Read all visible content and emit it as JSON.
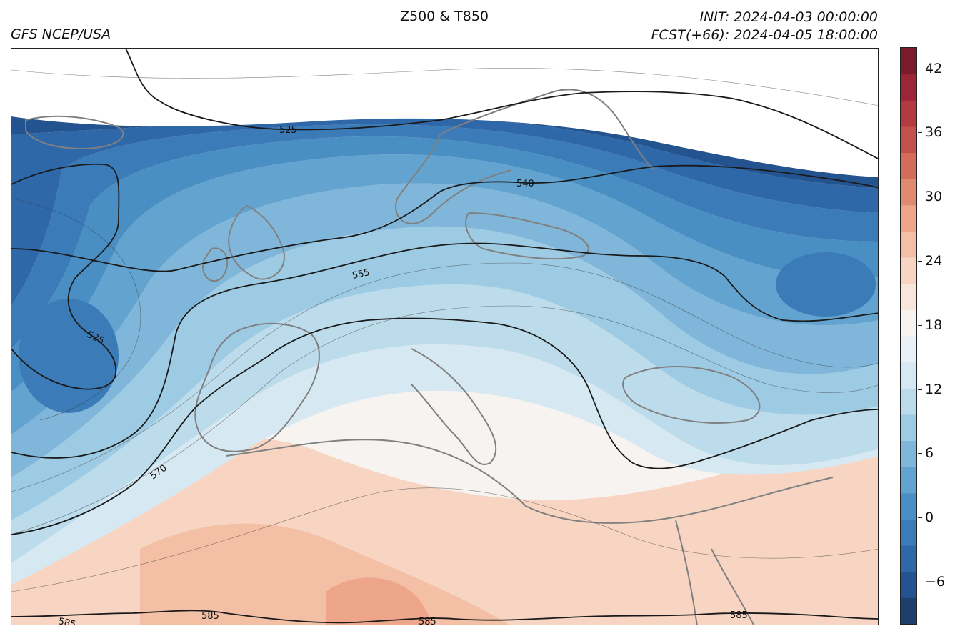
{
  "header": {
    "title": "Z500 & T850",
    "model": "GFS NCEP/USA",
    "init": "INIT: 2024-04-03 00:00:00",
    "forecast": "FCST(+66): 2024-04-05 18:00:00"
  },
  "map": {
    "region": "Europe / North Atlantic / Mediterranean / North Africa",
    "coastline_color": "#808080",
    "contour_color": "#1a1a1a",
    "contour_labels": [
      "525",
      "525",
      "540",
      "555",
      "570",
      "585",
      "585",
      "585",
      "585"
    ]
  },
  "colorbar": {
    "ticks": [
      "−6",
      "0",
      "6",
      "12",
      "18",
      "24",
      "30",
      "36",
      "42"
    ],
    "tick_values": [
      -6,
      0,
      6,
      12,
      18,
      24,
      30,
      36,
      42
    ],
    "range": [
      -9,
      45
    ],
    "colormap": "RdBu_r",
    "colors": [
      "#1c3f6e",
      "#24548f",
      "#2f68a8",
      "#3a7bb8",
      "#4a8fc4",
      "#63a3cf",
      "#80b6da",
      "#9ecbe4",
      "#bcdcec",
      "#d6e8f2",
      "#eaf1f6",
      "#f6f3f0",
      "#f9e6db",
      "#f7d5c2",
      "#f3c0a6",
      "#eda68a",
      "#e08a6f",
      "#d36d5a",
      "#c4504b",
      "#b33a41",
      "#9c2638",
      "#7a1a2c"
    ]
  }
}
